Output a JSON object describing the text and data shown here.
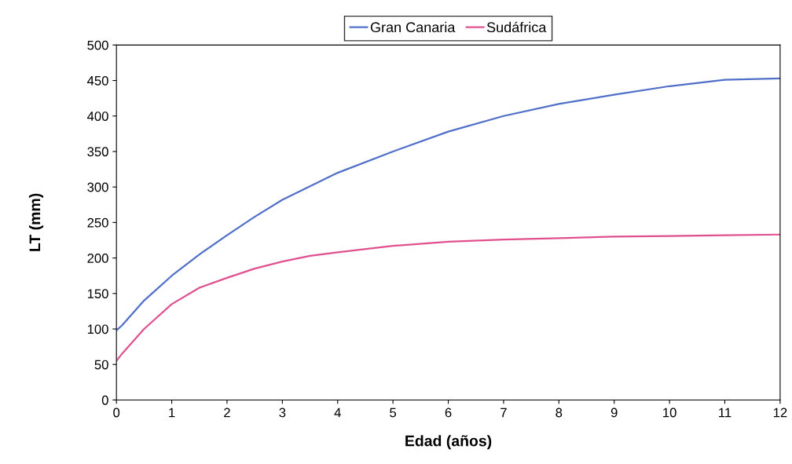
{
  "chart_data": {
    "type": "line",
    "xlabel": "Edad (años)",
    "ylabel": "LT (mm)",
    "xlim": [
      0,
      12
    ],
    "xticks": [
      0,
      1,
      2,
      3,
      4,
      5,
      6,
      7,
      8,
      9,
      10,
      11,
      12
    ],
    "ylim": [
      0,
      500
    ],
    "yticks": [
      0,
      50,
      100,
      150,
      200,
      250,
      300,
      350,
      400,
      450,
      500
    ],
    "grid": false,
    "legend": "top",
    "marker": "none",
    "line_style": "solid",
    "series": [
      {
        "name": "Gran Canaria",
        "color": "#4f6fc8",
        "x": [
          0,
          0.1,
          0.5,
          1,
          1.5,
          2,
          2.5,
          3,
          4,
          5,
          6,
          7,
          8,
          9,
          10,
          11,
          12
        ],
        "values": [
          98,
          105,
          140,
          175,
          205,
          232,
          258,
          282,
          320,
          350,
          378,
          400,
          417,
          430,
          442,
          451,
          453
        ]
      },
      {
        "name": "Sudáfrica",
        "color": "#e0508f",
        "x": [
          0,
          0.1,
          0.5,
          1,
          1.5,
          2,
          2.5,
          3,
          3.5,
          4,
          5,
          6,
          7,
          8,
          9,
          10,
          11,
          12
        ],
        "values": [
          55,
          65,
          100,
          135,
          158,
          172,
          185,
          195,
          203,
          208,
          217,
          223,
          226,
          228,
          230,
          231,
          232,
          233
        ]
      }
    ]
  }
}
